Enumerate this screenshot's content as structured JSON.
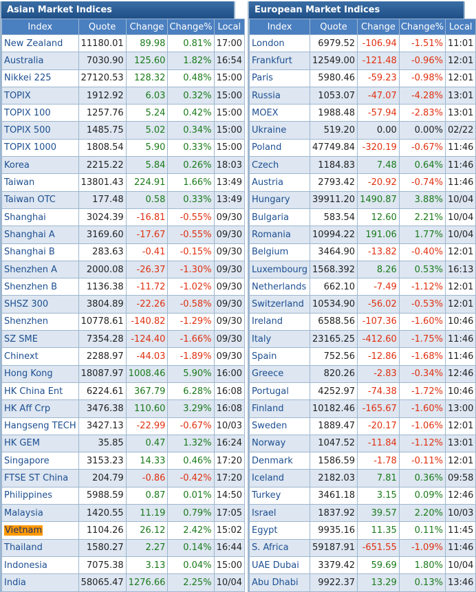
{
  "colors": {
    "positive": "#1a7a1a",
    "negative": "#e03010",
    "header": "#4a7fc0"
  },
  "columns": [
    "Index",
    "Quote",
    "Change",
    "Change%",
    "Local"
  ],
  "asian": {
    "title": "Asian Market Indices",
    "rows": [
      [
        "New Zealand",
        "11180.01",
        "89.98",
        "0.81%",
        "17:00"
      ],
      [
        "Australia",
        "7030.90",
        "125.60",
        "1.82%",
        "16:54"
      ],
      [
        "Nikkei 225",
        "27120.53",
        "128.32",
        "0.48%",
        "15:00"
      ],
      [
        "TOPIX",
        "1912.92",
        "6.03",
        "0.32%",
        "15:00"
      ],
      [
        "TOPIX 100",
        "1257.76",
        "5.24",
        "0.42%",
        "15:00"
      ],
      [
        "TOPIX 500",
        "1485.75",
        "5.02",
        "0.34%",
        "15:00"
      ],
      [
        "TOPIX 1000",
        "1808.54",
        "5.90",
        "0.33%",
        "15:00"
      ],
      [
        "Korea",
        "2215.22",
        "5.84",
        "0.26%",
        "18:03"
      ],
      [
        "Taiwan",
        "13801.43",
        "224.91",
        "1.66%",
        "13:49"
      ],
      [
        "Taiwan OTC",
        "177.48",
        "0.58",
        "0.33%",
        "13:49"
      ],
      [
        "Shanghai",
        "3024.39",
        "-16.81",
        "-0.55%",
        "09/30"
      ],
      [
        "Shanghai A",
        "3169.60",
        "-17.67",
        "-0.55%",
        "09/30"
      ],
      [
        "Shanghai B",
        "283.63",
        "-0.41",
        "-0.15%",
        "09/30"
      ],
      [
        "Shenzhen A",
        "2000.08",
        "-26.37",
        "-1.30%",
        "09/30"
      ],
      [
        "Shenzhen B",
        "1136.38",
        "-11.72",
        "-1.02%",
        "09/30"
      ],
      [
        "SHSZ 300",
        "3804.89",
        "-22.26",
        "-0.58%",
        "09/30"
      ],
      [
        "Shenzhen",
        "10778.61",
        "-140.82",
        "-1.29%",
        "09/30"
      ],
      [
        "SZ SME",
        "7354.28",
        "-124.40",
        "-1.66%",
        "09/30"
      ],
      [
        "Chinext",
        "2288.97",
        "-44.03",
        "-1.89%",
        "09/30"
      ],
      [
        "Hong Kong",
        "18087.97",
        "1008.46",
        "5.90%",
        "16:00"
      ],
      [
        "HK China Ent",
        "6224.61",
        "367.79",
        "6.28%",
        "16:08"
      ],
      [
        "HK Aff Crp",
        "3476.38",
        "110.60",
        "3.29%",
        "16:08"
      ],
      [
        "Hangseng TECH",
        "3427.13",
        "-22.99",
        "-0.67%",
        "10/03"
      ],
      [
        "HK GEM",
        "35.85",
        "0.47",
        "1.32%",
        "16:24"
      ],
      [
        "Singapore",
        "3153.23",
        "14.33",
        "0.46%",
        "17:20"
      ],
      [
        "FTSE ST China",
        "204.79",
        "-0.86",
        "-0.42%",
        "17:20"
      ],
      [
        "Philippines",
        "5988.59",
        "0.87",
        "0.01%",
        "14:50"
      ],
      [
        "Malaysia",
        "1420.55",
        "11.19",
        "0.79%",
        "17:05"
      ],
      [
        "Vietnam",
        "1104.26",
        "26.12",
        "2.42%",
        "15:02"
      ],
      [
        "Thailand",
        "1580.27",
        "2.27",
        "0.14%",
        "16:44"
      ],
      [
        "Indonesia",
        "7075.38",
        "3.13",
        "0.04%",
        "15:00"
      ],
      [
        "India",
        "58065.47",
        "1276.66",
        "2.25%",
        "10/04"
      ]
    ],
    "highlighted": "Vietnam"
  },
  "european": {
    "title": "European Market Indices",
    "rows": [
      [
        "London",
        "6979.52",
        "-106.94",
        "-1.51%",
        "11:01"
      ],
      [
        "Frankfurt",
        "12549.00",
        "-121.48",
        "-0.96%",
        "12:01"
      ],
      [
        "Paris",
        "5980.46",
        "-59.23",
        "-0.98%",
        "12:01"
      ],
      [
        "Russia",
        "1053.07",
        "-47.07",
        "-4.28%",
        "13:01"
      ],
      [
        "MOEX",
        "1988.48",
        "-57.94",
        "-2.83%",
        "13:01"
      ],
      [
        "Ukraine",
        "519.20",
        "0.00",
        "0.00%",
        "02/22"
      ],
      [
        "Poland",
        "47749.84",
        "-320.19",
        "-0.67%",
        "11:46"
      ],
      [
        "Czech",
        "1184.83",
        "7.48",
        "0.64%",
        "11:46"
      ],
      [
        "Austria",
        "2793.42",
        "-20.92",
        "-0.74%",
        "11:46"
      ],
      [
        "Hungary",
        "39911.20",
        "1490.87",
        "3.88%",
        "10/04"
      ],
      [
        "Bulgaria",
        "583.54",
        "12.60",
        "2.21%",
        "10/04"
      ],
      [
        "Romania",
        "10994.22",
        "191.06",
        "1.77%",
        "10/04"
      ],
      [
        "Belgium",
        "3464.90",
        "-13.82",
        "-0.40%",
        "12:01"
      ],
      [
        "Luxembourg",
        "1568.392",
        "8.26",
        "0.53%",
        "16:13"
      ],
      [
        "Netherlands",
        "662.10",
        "-7.49",
        "-1.12%",
        "12:01"
      ],
      [
        "Switzerland",
        "10534.90",
        "-56.02",
        "-0.53%",
        "12:01"
      ],
      [
        "Ireland",
        "6588.56",
        "-107.36",
        "-1.60%",
        "10:46"
      ],
      [
        "Italy",
        "23165.25",
        "-412.60",
        "-1.75%",
        "11:46"
      ],
      [
        "Spain",
        "752.56",
        "-12.86",
        "-1.68%",
        "11:46"
      ],
      [
        "Greece",
        "820.26",
        "-2.83",
        "-0.34%",
        "12:46"
      ],
      [
        "Portugal",
        "4252.97",
        "-74.38",
        "-1.72%",
        "10:46"
      ],
      [
        "Finland",
        "10182.46",
        "-165.67",
        "-1.60%",
        "13:00"
      ],
      [
        "Sweden",
        "1889.47",
        "-20.17",
        "-1.06%",
        "12:01"
      ],
      [
        "Norway",
        "1047.52",
        "-11.84",
        "-1.12%",
        "13:01"
      ],
      [
        "Denmark",
        "1586.59",
        "-1.78",
        "-0.11%",
        "12:01"
      ],
      [
        "Iceland",
        "2182.03",
        "7.81",
        "0.36%",
        "09:58"
      ],
      [
        "Turkey",
        "3461.18",
        "3.15",
        "0.09%",
        "12:46"
      ],
      [
        "Israel",
        "1837.92",
        "39.57",
        "2.20%",
        "10/03"
      ],
      [
        "Egypt",
        "9935.16",
        "11.35",
        "0.11%",
        "11:45"
      ],
      [
        "S. Africa",
        "59187.91",
        "-651.55",
        "-1.09%",
        "11:46"
      ],
      [
        "UAE Dubai",
        "3379.42",
        "59.69",
        "1.80%",
        "10/04"
      ],
      [
        "Abu Dhabi",
        "9922.37",
        "13.29",
        "0.13%",
        "13:46"
      ]
    ]
  }
}
